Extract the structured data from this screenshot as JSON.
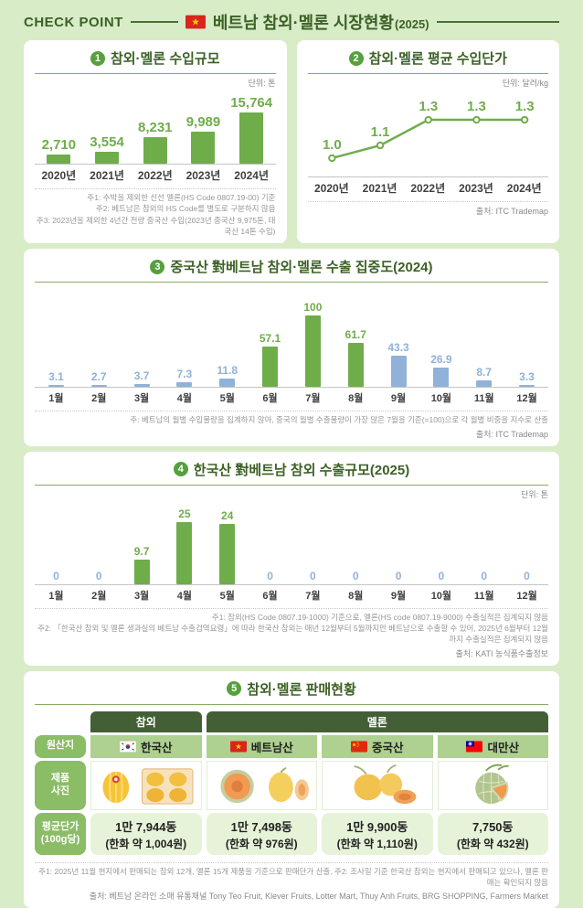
{
  "header": {
    "check_point": "CHECK POINT",
    "title": "베트남 참외·멜론 시장현황",
    "title_year": "(2025)"
  },
  "colors": {
    "bg": "#d8ecc8",
    "green": "#6fad4b",
    "blue": "#90b1d8",
    "dark_green_text": "#3c6125",
    "badge_green": "#56a03d",
    "table_header_green": "#435f36",
    "origin_row_green": "#aed091",
    "price_cell_green": "#e7f3d9",
    "label_pill_green": "#8abd66"
  },
  "panels": {
    "p1": {
      "num": "1",
      "title": "참외·멜론 수입규모",
      "unit": "단위: 톤",
      "notes": [
        "주1: 수박을 제외한 신선 멜론(HS Code 0807.19-00) 기준",
        "주2: 베트남은 참외의 HS Code를 별도로 구분하지 않음",
        "주3: 2023년을 제외한 4년간 전량 중국산 수입(2023년 중국산 9,975톤, 태국산 14톤 수입)"
      ]
    },
    "p2": {
      "num": "2",
      "title": "참외·멜론 평균 수입단가",
      "unit": "단위: 달러/kg",
      "source": "출처: ITC Trademap"
    },
    "p3": {
      "num": "3",
      "title": "중국산 對베트남 참외·멜론 수출 집중도(2024)",
      "note": "주: 베트남의 월별 수입물량을 집계하지 않아, 중국의 월별 수출물량이 가장 많은 7월을 기준(=100)으로 각 월별 비중을 지수로 산출",
      "source": "출처: ITC Trademap"
    },
    "p4": {
      "num": "4",
      "title": "한국산 對베트남 참외 수출규모(2025)",
      "unit": "단위: 톤",
      "notes": [
        "주1: 참외(HS Code 0807.19-1000) 기준으로, 멜론(HS code 0807.19-9000) 수출실적은 집계되지 않음",
        "주2: 「한국산 참외 및 멜론 생과실의 베트남 수출검역요령」에 따라 한국산 참외는 매년 12월부터 5월까지만 베트남으로 수출할 수 있어, 2025년 6월부터 12월까지 수출실적은 집계되지 않음"
      ],
      "source": "출처: KATI 농식품수출정보"
    },
    "p5": {
      "num": "5",
      "title": "참외·멜론 판매현황",
      "notes": "주1: 2025년 11월 현지에서 판매되는 참외 12개, 멜론 15개 제품을 기준으로 판매단가 산출, 주2: 조사일 기준 한국산 참외는 현지에서 판매되고 있으나, 멜론 판매는 확인되지 않음",
      "source": "출처: 베트남 온라인 소매 유통채널 Tony Teo Fruit, Klever Fruits, Lotter Mart, Thuy Anh Fruits, BRG SHOPPING, Farmers Market"
    }
  },
  "chart_data": [
    {
      "id": "import-volume",
      "type": "bar",
      "title": "참외·멜론 수입규모",
      "ylabel": "톤",
      "categories": [
        "2020년",
        "2021년",
        "2022년",
        "2023년",
        "2024년"
      ],
      "values": [
        2710,
        3554,
        8231,
        9989,
        15764
      ],
      "labels": [
        "2,710",
        "3,554",
        "8,231",
        "9,989",
        "15,764"
      ],
      "styles": [
        "g",
        "g",
        "g",
        "g",
        "g"
      ],
      "grid": false,
      "legend": "none"
    },
    {
      "id": "avg-import-price",
      "type": "line",
      "title": "참외·멜론 평균 수입단가",
      "ylabel": "달러/kg",
      "categories": [
        "2020년",
        "2021년",
        "2022년",
        "2023년",
        "2024년"
      ],
      "values": [
        1.0,
        1.1,
        1.3,
        1.3,
        1.3
      ],
      "labels": [
        "1.0",
        "1.1",
        "1.3",
        "1.3",
        "1.3"
      ],
      "grid": false,
      "legend": "none"
    },
    {
      "id": "china-export-concentration",
      "type": "bar",
      "title": "중국산 對베트남 참외·멜론 수출 집중도(2024)",
      "ylabel": "지수(7월=100)",
      "categories": [
        "1월",
        "2월",
        "3월",
        "4월",
        "5월",
        "6월",
        "7월",
        "8월",
        "9월",
        "10월",
        "11월",
        "12월"
      ],
      "values": [
        3.1,
        2.7,
        3.7,
        7.3,
        11.8,
        57.1,
        100,
        61.7,
        43.3,
        26.9,
        8.7,
        3.3
      ],
      "labels": [
        "3.1",
        "2.7",
        "3.7",
        "7.3",
        "11.8",
        "57.1",
        "100",
        "61.7",
        "43.3",
        "26.9",
        "8.7",
        "3.3"
      ],
      "styles": [
        "b",
        "b",
        "b",
        "b",
        "b",
        "g",
        "g",
        "g",
        "b",
        "b",
        "b",
        "b"
      ],
      "grid": false,
      "legend": "none"
    },
    {
      "id": "korea-export-volume",
      "type": "bar",
      "title": "한국산 對베트남 참외 수출규모(2025)",
      "ylabel": "톤",
      "categories": [
        "1월",
        "2월",
        "3월",
        "4월",
        "5월",
        "6월",
        "7월",
        "8월",
        "9월",
        "10월",
        "11월",
        "12월"
      ],
      "values": [
        0,
        0,
        9.7,
        25,
        24,
        0,
        0,
        0,
        0,
        0,
        0,
        0
      ],
      "labels": [
        "0",
        "0",
        "9.7",
        "25",
        "24",
        "0",
        "0",
        "0",
        "0",
        "0",
        "0",
        "0"
      ],
      "styles": [
        "b",
        "b",
        "g",
        "g",
        "g",
        "b",
        "b",
        "b",
        "b",
        "b",
        "b",
        "b"
      ],
      "grid": false,
      "legend": "none"
    }
  ],
  "table": {
    "group_headers": [
      "참외",
      "멜론"
    ],
    "row_labels": [
      "원산지",
      "제품\n사진",
      "평균단가\n(100g당)"
    ],
    "columns": [
      {
        "origin": "한국산",
        "flag": "korea-flag",
        "price": "1만 7,944동",
        "price_krw": "(한화 약 1,004원)"
      },
      {
        "origin": "베트남산",
        "flag": "vietnam-flag",
        "price": "1만 7,498동",
        "price_krw": "(한화 약 976원)"
      },
      {
        "origin": "중국산",
        "flag": "china-flag",
        "price": "1만 9,900동",
        "price_krw": "(한화 약 1,110원)"
      },
      {
        "origin": "대만산",
        "flag": "taiwan-flag",
        "price": "7,750동",
        "price_krw": "(한화 약 432원)"
      }
    ]
  }
}
